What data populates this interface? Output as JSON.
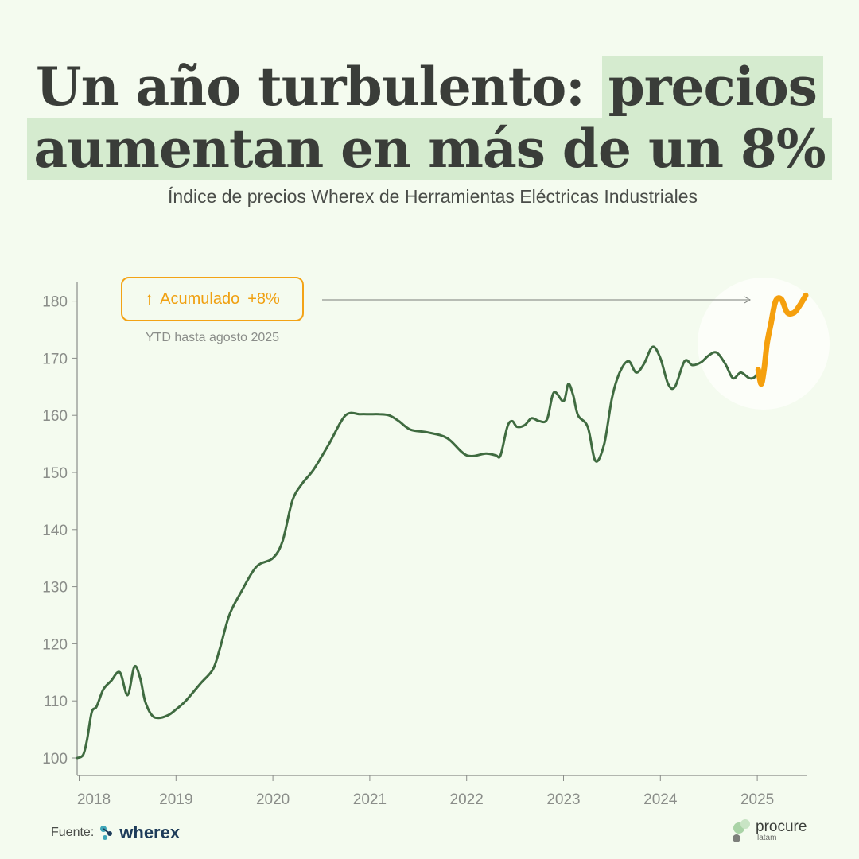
{
  "header": {
    "title_line1_plain": "Un año turbulento:",
    "title_line1_highlight": "precios",
    "title_line2_highlight": "aumentan en más de un 8%",
    "subtitle": "Índice de precios Wherex de Herramientas Eléctricas Industriales"
  },
  "callout": {
    "arrow": "↑",
    "label": "Acumulado",
    "value": "+8%",
    "note": "YTD hasta agosto 2025"
  },
  "footer": {
    "source_label": "Fuente:",
    "source_brand": "wherex",
    "logo_main": "procure",
    "logo_sub": "latam"
  },
  "colors": {
    "history": "#3f6b40",
    "highlight": "#f5a00e",
    "axis": "#8a8d89",
    "tick_label": "#8a8d89",
    "callout_arrow": "#7a7d79"
  },
  "chart_data": {
    "type": "line",
    "title": "Índice de precios Wherex de Herramientas Eléctricas Industriales",
    "xlabel": "",
    "ylabel": "",
    "xlim": [
      2017.97,
      2025.55
    ],
    "ylim": [
      97,
      184
    ],
    "yticks": [
      100,
      110,
      120,
      130,
      140,
      150,
      160,
      170,
      180
    ],
    "xticks": [
      "2018",
      "2019",
      "2020",
      "2021",
      "2022",
      "2023",
      "2024",
      "2025"
    ],
    "grid": false,
    "series": [
      {
        "role": "history",
        "x": [
          2017.98,
          2018.04,
          2018.08,
          2018.13,
          2018.18,
          2018.25,
          2018.33,
          2018.42,
          2018.5,
          2018.57,
          2018.63,
          2018.68,
          2018.75,
          2018.82,
          2018.92,
          2019.0,
          2019.1,
          2019.25,
          2019.38,
          2019.45,
          2019.55,
          2019.67,
          2019.83,
          2020.0,
          2020.1,
          2020.2,
          2020.3,
          2020.42,
          2020.58,
          2020.75,
          2020.9,
          2021.0,
          2021.1,
          2021.2,
          2021.3,
          2021.42,
          2021.6,
          2021.8,
          2022.0,
          2022.2,
          2022.3,
          2022.35,
          2022.42,
          2022.47,
          2022.52,
          2022.6,
          2022.67,
          2022.75,
          2022.83,
          2022.9,
          2023.0,
          2023.05,
          2023.1,
          2023.15,
          2023.25,
          2023.33,
          2023.42,
          2023.5,
          2023.58,
          2023.67,
          2023.75,
          2023.83,
          2023.92,
          2024.0,
          2024.08,
          2024.15,
          2024.25,
          2024.33,
          2024.42,
          2024.5,
          2024.58,
          2024.67,
          2024.75,
          2024.83,
          2024.92,
          2024.98,
          2025.01
        ],
        "y": [
          100,
          100.5,
          103,
          108,
          109,
          112,
          113.5,
          115,
          111,
          116,
          114,
          110,
          107.5,
          107,
          107.5,
          108.5,
          110,
          113,
          115.5,
          119,
          125,
          129,
          133.5,
          135,
          138,
          145,
          148,
          150.5,
          155,
          160,
          160.2,
          160.2,
          160.2,
          160,
          159,
          157.5,
          157,
          156,
          153,
          153.3,
          153,
          153,
          158,
          159,
          158,
          158.3,
          159.5,
          159,
          159.3,
          164,
          162.5,
          165.5,
          163.5,
          160,
          158,
          152,
          155,
          163,
          167.5,
          169.5,
          167.5,
          169,
          172,
          170,
          165.5,
          165,
          169.5,
          168.8,
          169.3,
          170.5,
          171,
          169,
          166.5,
          167.5,
          166.5,
          166.8,
          168
        ]
      },
      {
        "role": "highlight",
        "x": [
          2025.01,
          2025.04,
          2025.07,
          2025.1,
          2025.14,
          2025.19,
          2025.25,
          2025.31,
          2025.38,
          2025.44,
          2025.5
        ],
        "y": [
          168,
          165.5,
          168,
          172.5,
          176,
          180,
          180.3,
          178,
          178,
          179.3,
          181
        ]
      }
    ]
  }
}
